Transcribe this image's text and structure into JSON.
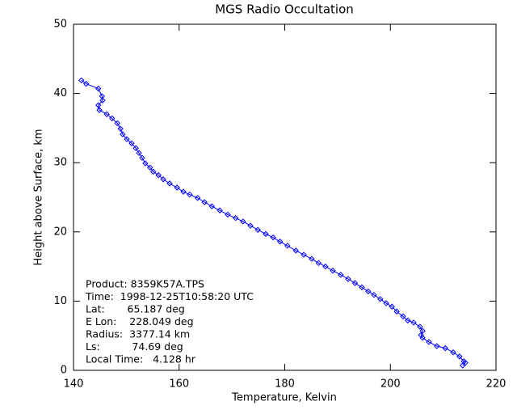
{
  "chart_data": {
    "type": "line",
    "title": "MGS Radio Occultation",
    "xlabel": "Temperature, Kelvin",
    "ylabel": "Height above Surface, km",
    "x": [
      141.5,
      142.4,
      144.7,
      145.4,
      145.5,
      144.7,
      144.9,
      146.3,
      147.3,
      148.3,
      148.9,
      149.3,
      150.1,
      151.0,
      151.8,
      152.4,
      153.0,
      153.6,
      154.5,
      155.1,
      156.1,
      157.0,
      158.2,
      159.6,
      160.8,
      162.0,
      163.5,
      164.8,
      166.2,
      167.7,
      169.2,
      170.7,
      172.1,
      173.5,
      174.9,
      176.4,
      177.8,
      179.1,
      180.5,
      182.1,
      183.6,
      185.1,
      186.4,
      187.7,
      189.1,
      190.6,
      192.0,
      193.3,
      194.6,
      195.8,
      196.9,
      198.1,
      199.2,
      200.3,
      201.2,
      202.4,
      203.3,
      204.4,
      205.6,
      206.1,
      205.8,
      206.1,
      207.3,
      208.8,
      210.4,
      211.9,
      213.1,
      213.9,
      214.2,
      213.7
    ],
    "values": [
      41.9,
      41.4,
      40.7,
      39.6,
      39.0,
      38.3,
      37.6,
      37.0,
      36.4,
      35.7,
      34.9,
      34.1,
      33.4,
      32.8,
      32.1,
      31.4,
      30.7,
      29.9,
      29.3,
      28.7,
      28.2,
      27.6,
      27.0,
      26.4,
      25.8,
      25.4,
      24.9,
      24.3,
      23.7,
      23.1,
      22.5,
      22.0,
      21.5,
      20.9,
      20.3,
      19.7,
      19.2,
      18.6,
      18.0,
      17.3,
      16.7,
      16.1,
      15.5,
      15.0,
      14.4,
      13.8,
      13.2,
      12.6,
      12.0,
      11.4,
      10.9,
      10.3,
      9.7,
      9.2,
      8.5,
      7.8,
      7.2,
      6.9,
      6.3,
      5.7,
      5.1,
      4.7,
      4.1,
      3.5,
      3.2,
      2.6,
      2.0,
      1.3,
      1.1,
      0.7
    ],
    "color": "#0000ff",
    "xlim": [
      140,
      220
    ],
    "xticks": [
      140,
      160,
      180,
      200,
      220
    ],
    "ylim": [
      0,
      50
    ],
    "yticks": [
      0,
      10,
      20,
      30,
      40,
      50
    ],
    "annotations": [
      "Product: 8359K57A.TPS",
      "Time:  1998-12-25T10:58:20 UTC",
      "Lat:       65.187 deg",
      "E Lon:    228.049 deg",
      "Radius:  3377.14 km",
      "Ls:          74.69 deg",
      "Local Time:   4.128 hr"
    ]
  }
}
